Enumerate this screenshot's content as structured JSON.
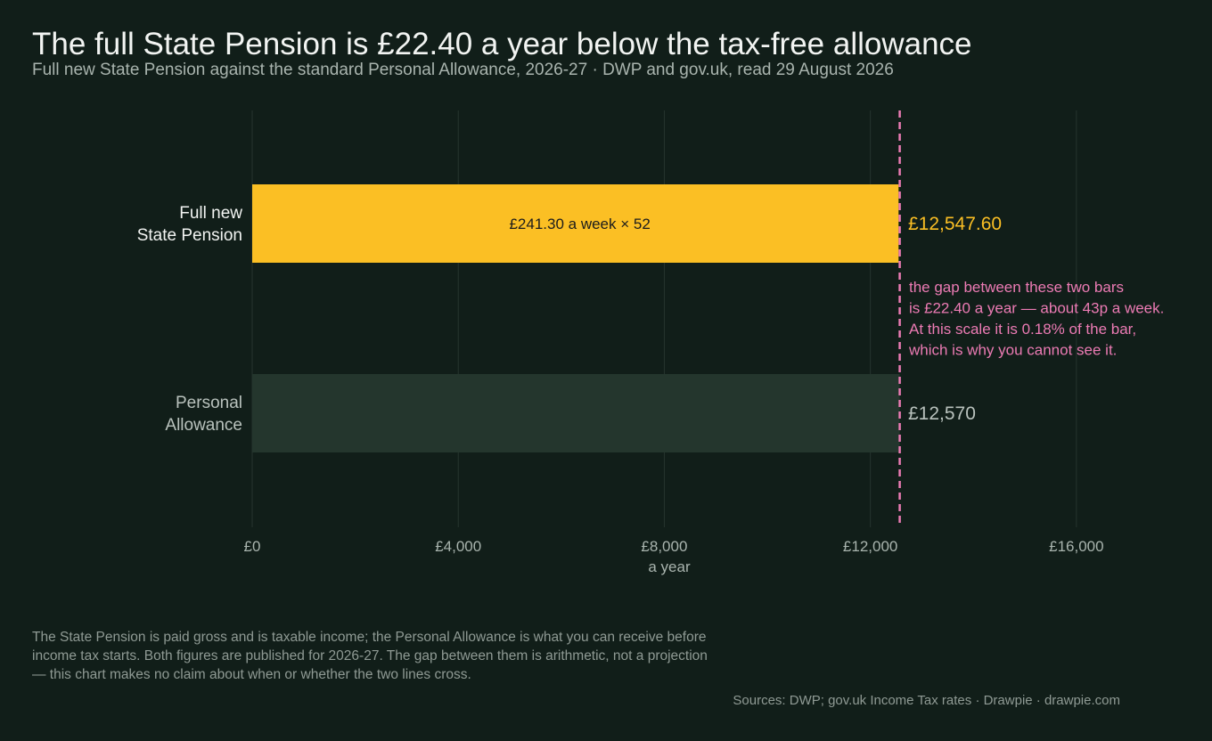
{
  "title": "The full State Pension is £22.40 a year below the tax-free allowance",
  "subtitle": "Full new State Pension against the standard Personal Allowance, 2026-27  ·  DWP and gov.uk, read 29 August 2026",
  "chart_data": {
    "type": "bar",
    "orientation": "horizontal",
    "categories": [
      [
        "Full new",
        "State Pension"
      ],
      [
        "Personal",
        "Allowance"
      ]
    ],
    "values": [
      12547.6,
      12570
    ],
    "value_labels": [
      "£12,547.60",
      "£12,570"
    ],
    "bar_inner_labels": [
      "£241.30 a week × 52",
      ""
    ],
    "colors": [
      "#fbbf24",
      "#24362d"
    ],
    "value_label_colors": [
      "#fbbf24",
      "#b9c2bd"
    ],
    "category_label_colors": [
      "#f2f4f2",
      "#b9c2bd"
    ],
    "xlim": [
      0,
      17300
    ],
    "xticks": [
      0,
      4000,
      8000,
      12000,
      16000
    ],
    "xtick_labels": [
      "£0",
      "£4,000",
      "£8,000",
      "£12,000",
      "£16,000"
    ],
    "xlabel": "a year",
    "grid": true,
    "reference_line": {
      "value": 12570,
      "color": "#ec7bb4",
      "style": "dashed"
    },
    "annotation": {
      "lines": [
        "the gap between these two bars",
        "is £22.40 a year — about 43p a week.",
        "At this scale it is 0.18% of the bar,",
        "which is why you cannot see it."
      ],
      "color": "#ec7bb4"
    }
  },
  "footnote": "The State Pension is paid gross and is taxable income; the Personal Allowance is what you can receive before income tax starts. Both figures are published for 2026-27. The gap between them is arithmetic, not a projection — this chart makes no claim about when or whether the two lines cross.",
  "sources": "Sources: DWP; gov.uk Income Tax rates  ·  Drawpie · drawpie.com"
}
